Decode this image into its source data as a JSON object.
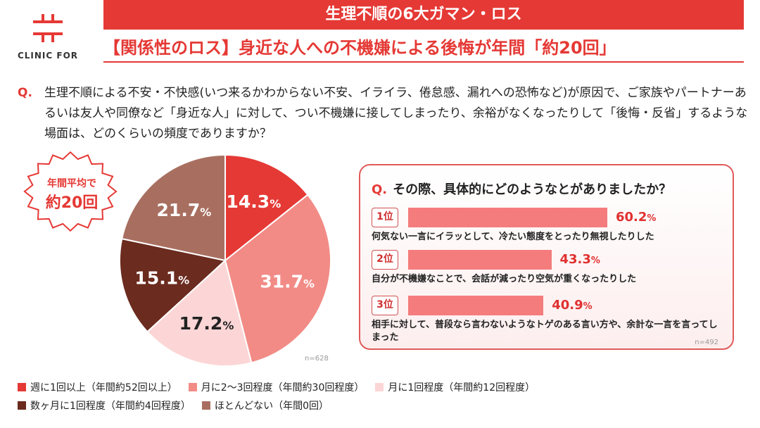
{
  "logo": {
    "text": "CLINIC FOR"
  },
  "header": {
    "title": "生理不順の6大ガマン・ロス",
    "subtitle": "【関係性のロス】身近な人への不機嫌による後悔が年間「約20回」"
  },
  "question": {
    "mark": "Q.",
    "text": "生理不順による不安・不快感(いつ来るかわからない不安、イライラ、倦怠感、漏れへの恐怖など)が原因で、ご家族やパートナーあるいは友人や同僚など「身近な人」に対して、つい不機嫌に接してしまったり、余裕がなくなったりして「後悔・反省」するような場面は、どのくらいの頻度でありますか？"
  },
  "badge": {
    "line1": "年間平均で",
    "line2": "約20回"
  },
  "chart_data": [
    {
      "type": "pie",
      "n_label": "n=628",
      "start": "top",
      "direction": "clockwise",
      "categories": [
        "週に1回以上（年間約52回以上）",
        "月に2〜3回程度（年間約30回程度）",
        "月に1回程度（年間約12回程度）",
        "数ヶ月に1回程度（年間約4回程度）",
        "ほとんどない（年間0回）"
      ],
      "values": [
        14.3,
        31.7,
        17.2,
        15.1,
        21.7
      ],
      "colors": [
        "#e53935",
        "#f28b86",
        "#fcd6d6",
        "#6b2b1f",
        "#a86f60"
      ],
      "label_colors": [
        "#ffffff",
        "#ffffff",
        "#222222",
        "#ffffff",
        "#ffffff"
      ],
      "legend": "bottom"
    },
    {
      "type": "bar",
      "orientation": "horizontal",
      "question_mark": "Q.",
      "title": "その際、具体的にどのようなとがありましたか？",
      "n_label": "n=492",
      "ranks": [
        "1位",
        "2位",
        "3位"
      ],
      "categories": [
        "何気ない一言にイラッとして、冷たい態度をとったり無視したりした",
        "自分が不機嫌なことで、会話が減ったり空気が重くなったりした",
        "相手に対して、普段なら言わないようなトゲのある言い方や、余計な一言を言ってしまった"
      ],
      "values": [
        60.2,
        43.3,
        40.9
      ],
      "unit": "%",
      "color": "#f47c7c"
    }
  ]
}
